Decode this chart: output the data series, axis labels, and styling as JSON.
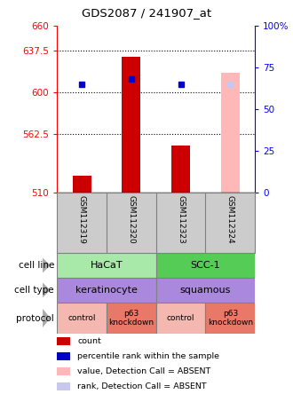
{
  "title": "GDS2087 / 241907_at",
  "samples": [
    "GSM112319",
    "GSM112320",
    "GSM112323",
    "GSM112324"
  ],
  "bar_values_red": [
    525,
    632,
    552,
    0
  ],
  "bar_values_pink": [
    0,
    0,
    0,
    618
  ],
  "dot_blue_pct": [
    65,
    68,
    65,
    0
  ],
  "dot_lightblue_pct": [
    0,
    0,
    0,
    65
  ],
  "absent_flags": [
    false,
    false,
    false,
    true
  ],
  "ylim_left": [
    510,
    660
  ],
  "yticks_left": [
    510,
    562.5,
    600,
    637.5,
    660
  ],
  "ylim_right": [
    0,
    100
  ],
  "yticks_right": [
    0,
    25,
    50,
    75,
    100
  ],
  "ytick_labels_right": [
    "0",
    "25",
    "50",
    "75",
    "100%"
  ],
  "cell_line_labels": [
    "HaCaT",
    "SCC-1"
  ],
  "cell_line_colors": [
    "#a8e8a8",
    "#55cc55"
  ],
  "cell_type_labels": [
    "keratinocyte",
    "squamous"
  ],
  "cell_type_color": "#aa88dd",
  "protocol_labels": [
    "control",
    "p63\nknockdown",
    "control",
    "p63\nknockdown"
  ],
  "protocol_color_light": "#f5b8b0",
  "protocol_color_dark": "#e87868",
  "legend_items": [
    {
      "color": "#cc0000",
      "label": "count"
    },
    {
      "color": "#0000cc",
      "label": "percentile rank within the sample"
    },
    {
      "color": "#ffb8b8",
      "label": "value, Detection Call = ABSENT"
    },
    {
      "color": "#c8c8ee",
      "label": "rank, Detection Call = ABSENT"
    }
  ]
}
